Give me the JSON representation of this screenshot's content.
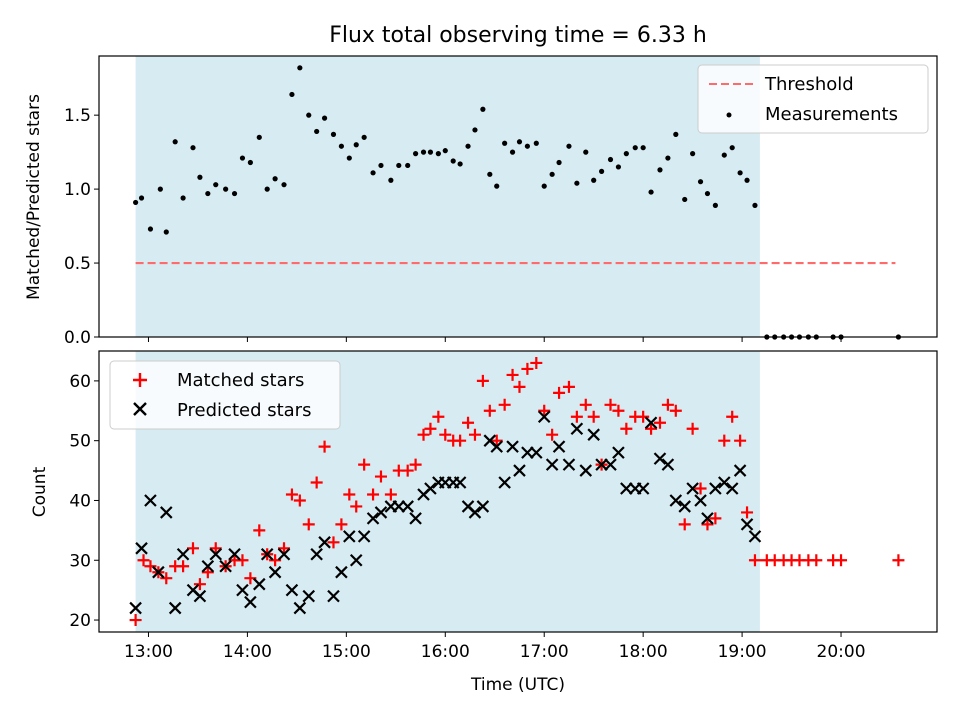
{
  "chart_data": [
    {
      "type": "scatter",
      "title": "Flux total observing time = 6.33 h",
      "xlabel": "",
      "ylabel": "Matched/Predicted stars",
      "xlim": [
        12.5,
        20.97
      ],
      "ylim": [
        0.0,
        1.9
      ],
      "yticks": [
        0.0,
        0.5,
        1.0,
        1.5
      ],
      "ytick_labels": [
        "0.0",
        "0.5",
        "1.0",
        "1.5"
      ],
      "legend_position": "top-right",
      "shaded_region": {
        "x_start": 12.87,
        "x_end": 19.18,
        "color": "#add8e6"
      },
      "threshold": {
        "name": "Threshold",
        "value": 0.5,
        "x_start": 12.87,
        "x_end": 20.55,
        "color": "#ff6b6b"
      },
      "series": [
        {
          "name": "Measurements",
          "color": "#000000",
          "points": [
            [
              12.87,
              0.91
            ],
            [
              12.93,
              0.94
            ],
            [
              13.02,
              0.73
            ],
            [
              13.12,
              1.0
            ],
            [
              13.18,
              0.71
            ],
            [
              13.27,
              1.32
            ],
            [
              13.35,
              0.94
            ],
            [
              13.45,
              1.28
            ],
            [
              13.52,
              1.08
            ],
            [
              13.6,
              0.97
            ],
            [
              13.68,
              1.03
            ],
            [
              13.78,
              1.0
            ],
            [
              13.87,
              0.97
            ],
            [
              13.95,
              1.21
            ],
            [
              14.03,
              1.18
            ],
            [
              14.12,
              1.35
            ],
            [
              14.2,
              1.0
            ],
            [
              14.28,
              1.07
            ],
            [
              14.37,
              1.03
            ],
            [
              14.45,
              1.64
            ],
            [
              14.53,
              1.82
            ],
            [
              14.62,
              1.5
            ],
            [
              14.7,
              1.39
            ],
            [
              14.78,
              1.48
            ],
            [
              14.87,
              1.37
            ],
            [
              14.95,
              1.29
            ],
            [
              15.03,
              1.21
            ],
            [
              15.1,
              1.3
            ],
            [
              15.18,
              1.35
            ],
            [
              15.27,
              1.11
            ],
            [
              15.35,
              1.16
            ],
            [
              15.45,
              1.06
            ],
            [
              15.53,
              1.16
            ],
            [
              15.62,
              1.16
            ],
            [
              15.7,
              1.24
            ],
            [
              15.78,
              1.25
            ],
            [
              15.85,
              1.25
            ],
            [
              15.93,
              1.24
            ],
            [
              16.0,
              1.26
            ],
            [
              16.08,
              1.19
            ],
            [
              16.15,
              1.17
            ],
            [
              16.23,
              1.29
            ],
            [
              16.3,
              1.4
            ],
            [
              16.38,
              1.54
            ],
            [
              16.45,
              1.1
            ],
            [
              16.52,
              1.02
            ],
            [
              16.6,
              1.31
            ],
            [
              16.68,
              1.25
            ],
            [
              16.75,
              1.32
            ],
            [
              16.83,
              1.29
            ],
            [
              16.92,
              1.31
            ],
            [
              17.0,
              1.02
            ],
            [
              17.08,
              1.1
            ],
            [
              17.15,
              1.18
            ],
            [
              17.25,
              1.29
            ],
            [
              17.33,
              1.04
            ],
            [
              17.42,
              1.25
            ],
            [
              17.5,
              1.06
            ],
            [
              17.58,
              1.12
            ],
            [
              17.67,
              1.2
            ],
            [
              17.75,
              1.15
            ],
            [
              17.83,
              1.24
            ],
            [
              17.92,
              1.28
            ],
            [
              18.0,
              1.28
            ],
            [
              18.08,
              0.98
            ],
            [
              18.17,
              1.13
            ],
            [
              18.25,
              1.21
            ],
            [
              18.33,
              1.37
            ],
            [
              18.42,
              0.93
            ],
            [
              18.5,
              1.24
            ],
            [
              18.58,
              1.05
            ],
            [
              18.65,
              0.97
            ],
            [
              18.73,
              0.89
            ],
            [
              18.82,
              1.23
            ],
            [
              18.9,
              1.28
            ],
            [
              18.98,
              1.11
            ],
            [
              19.05,
              1.06
            ],
            [
              19.13,
              0.89
            ],
            [
              19.25,
              0.0
            ],
            [
              19.33,
              0.0
            ],
            [
              19.42,
              0.0
            ],
            [
              19.5,
              0.0
            ],
            [
              19.58,
              0.0
            ],
            [
              19.67,
              0.0
            ],
            [
              19.75,
              0.0
            ],
            [
              19.92,
              0.0
            ],
            [
              20.0,
              0.0
            ],
            [
              20.58,
              0.0
            ]
          ]
        }
      ]
    },
    {
      "type": "scatter",
      "title": "",
      "xlabel": "Time (UTC)",
      "ylabel": "Count",
      "xlim": [
        12.5,
        20.97
      ],
      "ylim": [
        18,
        65
      ],
      "xticks": [
        13,
        14,
        15,
        16,
        17,
        18,
        19,
        20
      ],
      "xtick_labels": [
        "13:00",
        "14:00",
        "15:00",
        "16:00",
        "17:00",
        "18:00",
        "19:00",
        "20:00"
      ],
      "yticks": [
        20,
        30,
        40,
        50,
        60
      ],
      "ytick_labels": [
        "20",
        "30",
        "40",
        "50",
        "60"
      ],
      "legend_position": "top-left",
      "shaded_region": {
        "x_start": 12.87,
        "x_end": 19.18,
        "color": "#add8e6"
      },
      "series": [
        {
          "name": "Matched stars",
          "marker": "plus",
          "color": "#ff0000",
          "points": [
            [
              12.87,
              20
            ],
            [
              12.95,
              30
            ],
            [
              13.02,
              29
            ],
            [
              13.1,
              28
            ],
            [
              13.18,
              27
            ],
            [
              13.27,
              29
            ],
            [
              13.35,
              29
            ],
            [
              13.45,
              32
            ],
            [
              13.52,
              26
            ],
            [
              13.6,
              28
            ],
            [
              13.68,
              32
            ],
            [
              13.78,
              29
            ],
            [
              13.87,
              30
            ],
            [
              13.95,
              30
            ],
            [
              14.03,
              27
            ],
            [
              14.12,
              35
            ],
            [
              14.2,
              31
            ],
            [
              14.28,
              30
            ],
            [
              14.37,
              32
            ],
            [
              14.45,
              41
            ],
            [
              14.53,
              40
            ],
            [
              14.62,
              36
            ],
            [
              14.7,
              43
            ],
            [
              14.78,
              49
            ],
            [
              14.87,
              33
            ],
            [
              14.95,
              36
            ],
            [
              15.03,
              41
            ],
            [
              15.1,
              39
            ],
            [
              15.18,
              46
            ],
            [
              15.27,
              41
            ],
            [
              15.35,
              44
            ],
            [
              15.45,
              41
            ],
            [
              15.53,
              45
            ],
            [
              15.62,
              45
            ],
            [
              15.7,
              46
            ],
            [
              15.78,
              51
            ],
            [
              15.85,
              52
            ],
            [
              15.93,
              54
            ],
            [
              16.0,
              51
            ],
            [
              16.08,
              50
            ],
            [
              16.15,
              50
            ],
            [
              16.23,
              53
            ],
            [
              16.3,
              51
            ],
            [
              16.38,
              60
            ],
            [
              16.45,
              55
            ],
            [
              16.52,
              50
            ],
            [
              16.6,
              56
            ],
            [
              16.68,
              61
            ],
            [
              16.75,
              59
            ],
            [
              16.83,
              62
            ],
            [
              16.92,
              63
            ],
            [
              17.0,
              55
            ],
            [
              17.08,
              51
            ],
            [
              17.15,
              58
            ],
            [
              17.25,
              59
            ],
            [
              17.33,
              54
            ],
            [
              17.42,
              56
            ],
            [
              17.5,
              54
            ],
            [
              17.58,
              46
            ],
            [
              17.67,
              56
            ],
            [
              17.75,
              55
            ],
            [
              17.83,
              52
            ],
            [
              17.92,
              54
            ],
            [
              18.0,
              54
            ],
            [
              18.08,
              52
            ],
            [
              18.17,
              53
            ],
            [
              18.25,
              56
            ],
            [
              18.33,
              55
            ],
            [
              18.42,
              36
            ],
            [
              18.5,
              52
            ],
            [
              18.58,
              42
            ],
            [
              18.65,
              36
            ],
            [
              18.73,
              37
            ],
            [
              18.82,
              50
            ],
            [
              18.9,
              54
            ],
            [
              18.98,
              50
            ],
            [
              19.05,
              38
            ],
            [
              19.13,
              30
            ],
            [
              19.25,
              30
            ],
            [
              19.33,
              30
            ],
            [
              19.42,
              30
            ],
            [
              19.5,
              30
            ],
            [
              19.58,
              30
            ],
            [
              19.67,
              30
            ],
            [
              19.75,
              30
            ],
            [
              19.92,
              30
            ],
            [
              20.0,
              30
            ],
            [
              20.58,
              30
            ]
          ]
        },
        {
          "name": "Predicted stars",
          "marker": "x",
          "color": "#000000",
          "points": [
            [
              12.87,
              22
            ],
            [
              12.93,
              32
            ],
            [
              13.02,
              40
            ],
            [
              13.1,
              28
            ],
            [
              13.18,
              38
            ],
            [
              13.27,
              22
            ],
            [
              13.35,
              31
            ],
            [
              13.45,
              25
            ],
            [
              13.52,
              24
            ],
            [
              13.6,
              29
            ],
            [
              13.68,
              31
            ],
            [
              13.78,
              29
            ],
            [
              13.87,
              31
            ],
            [
              13.95,
              25
            ],
            [
              14.03,
              23
            ],
            [
              14.12,
              26
            ],
            [
              14.2,
              31
            ],
            [
              14.28,
              28
            ],
            [
              14.37,
              31
            ],
            [
              14.45,
              25
            ],
            [
              14.53,
              22
            ],
            [
              14.62,
              24
            ],
            [
              14.7,
              31
            ],
            [
              14.78,
              33
            ],
            [
              14.87,
              24
            ],
            [
              14.95,
              28
            ],
            [
              15.03,
              34
            ],
            [
              15.1,
              30
            ],
            [
              15.18,
              34
            ],
            [
              15.27,
              37
            ],
            [
              15.35,
              38
            ],
            [
              15.45,
              39
            ],
            [
              15.53,
              39
            ],
            [
              15.62,
              39
            ],
            [
              15.7,
              37
            ],
            [
              15.78,
              41
            ],
            [
              15.85,
              42
            ],
            [
              15.93,
              43
            ],
            [
              16.0,
              43
            ],
            [
              16.08,
              43
            ],
            [
              16.15,
              43
            ],
            [
              16.23,
              39
            ],
            [
              16.3,
              38
            ],
            [
              16.38,
              39
            ],
            [
              16.45,
              50
            ],
            [
              16.52,
              49
            ],
            [
              16.6,
              43
            ],
            [
              16.68,
              49
            ],
            [
              16.75,
              45
            ],
            [
              16.83,
              48
            ],
            [
              16.92,
              48
            ],
            [
              17.0,
              54
            ],
            [
              17.08,
              46
            ],
            [
              17.15,
              49
            ],
            [
              17.25,
              46
            ],
            [
              17.33,
              52
            ],
            [
              17.42,
              45
            ],
            [
              17.5,
              51
            ],
            [
              17.58,
              46
            ],
            [
              17.67,
              46
            ],
            [
              17.75,
              48
            ],
            [
              17.83,
              42
            ],
            [
              17.92,
              42
            ],
            [
              18.0,
              42
            ],
            [
              18.08,
              53
            ],
            [
              18.17,
              47
            ],
            [
              18.25,
              46
            ],
            [
              18.33,
              40
            ],
            [
              18.42,
              39
            ],
            [
              18.5,
              42
            ],
            [
              18.58,
              40
            ],
            [
              18.65,
              37
            ],
            [
              18.73,
              42
            ],
            [
              18.82,
              43
            ],
            [
              18.9,
              42
            ],
            [
              18.98,
              45
            ],
            [
              19.05,
              36
            ],
            [
              19.13,
              34
            ]
          ]
        }
      ]
    }
  ]
}
